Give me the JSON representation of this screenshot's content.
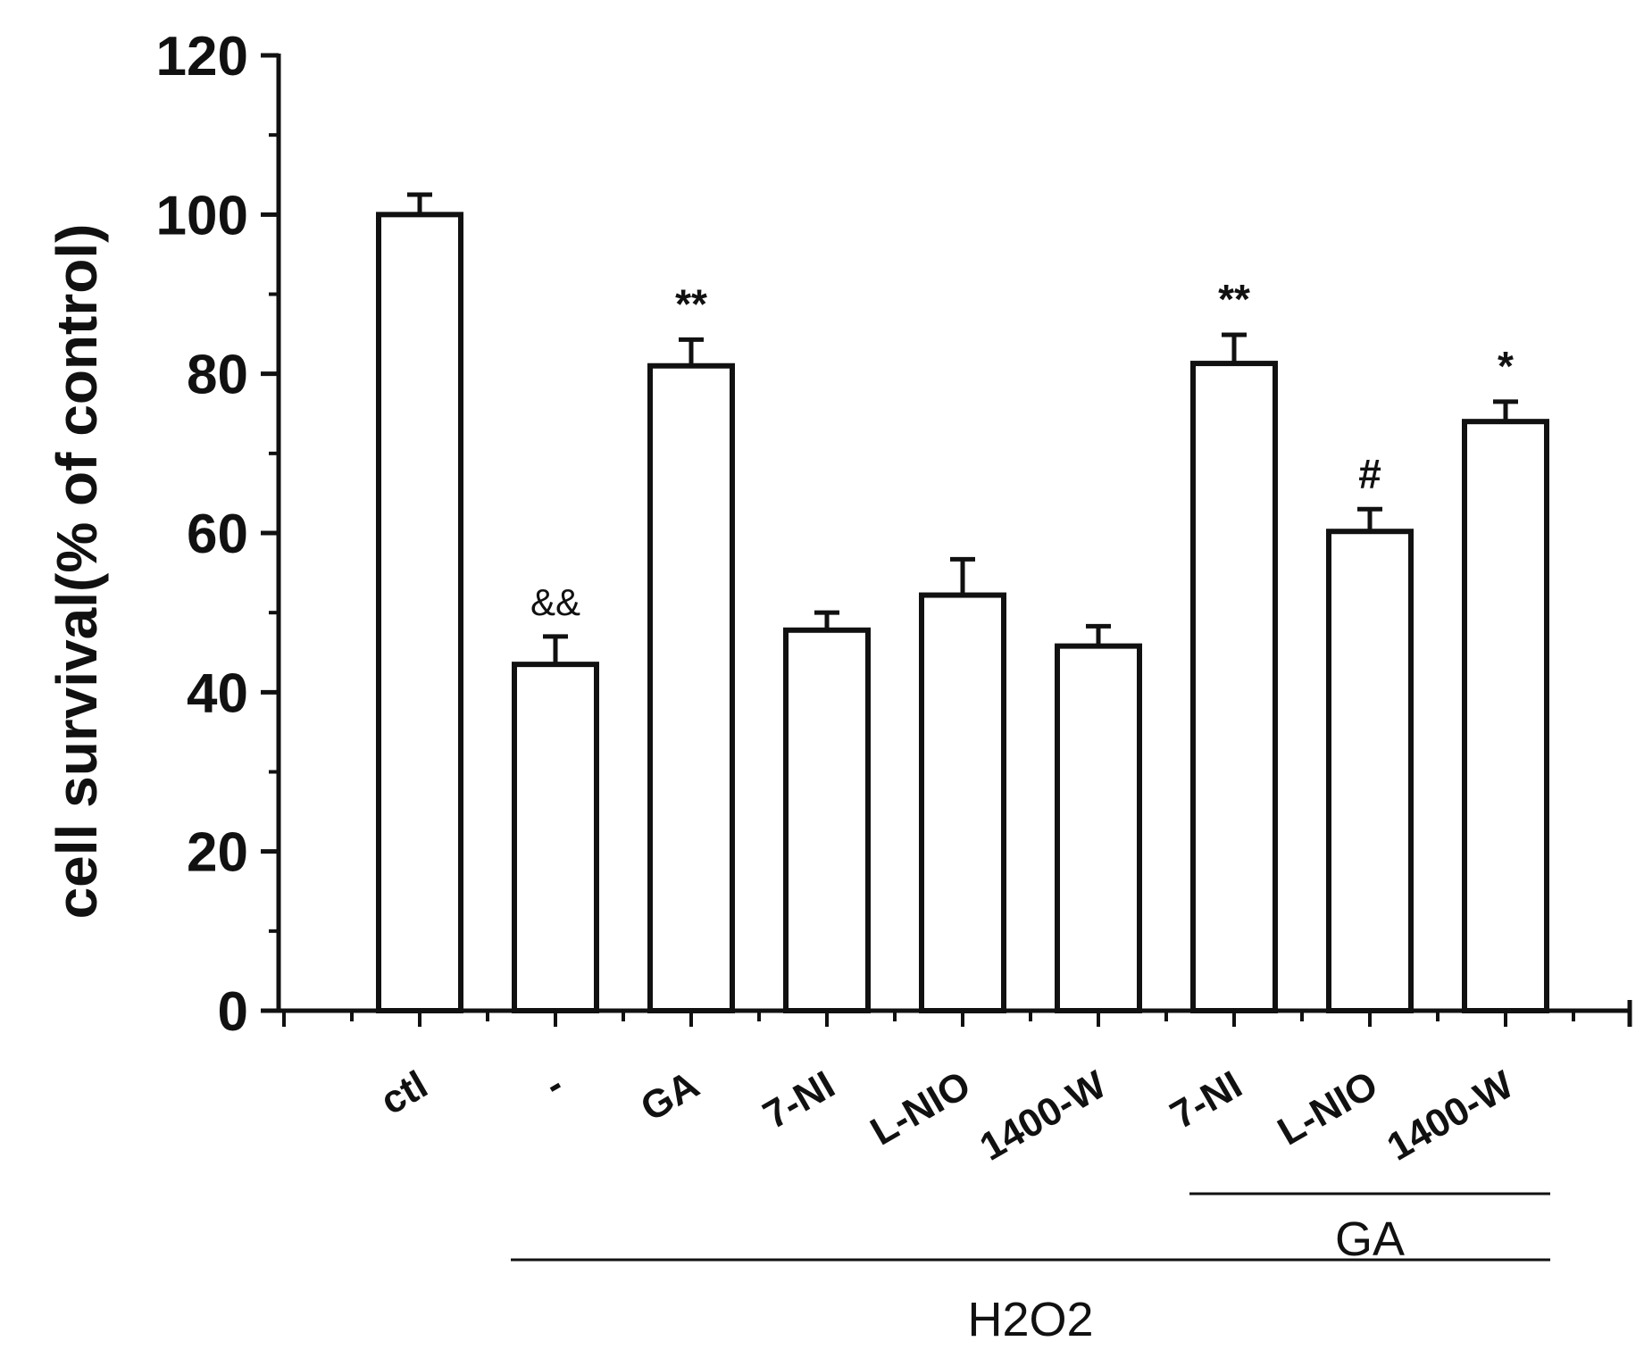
{
  "chart_data": {
    "type": "bar",
    "categories": [
      "ctl",
      "-",
      "GA",
      "7-NI",
      "L-NIO",
      "1400-W",
      "7-NI",
      "L-NIO",
      "1400-W"
    ],
    "values": [
      100,
      43.5,
      81,
      47.8,
      52.2,
      45.8,
      81.3,
      60.2,
      74
    ],
    "errors": [
      2.5,
      3.5,
      3.3,
      2.2,
      4.5,
      2.5,
      3.6,
      2.8,
      2.5
    ],
    "annotations": [
      "",
      "&&",
      "**",
      "",
      "",
      "",
      "**",
      "#",
      "*"
    ],
    "ylabel": "cell survival(% of control)",
    "xlabel": "",
    "ylim": [
      0,
      120
    ],
    "yticks": [
      0,
      20,
      40,
      60,
      80,
      100,
      120
    ],
    "grid": false,
    "bar_fill": "#ffffff",
    "bar_stroke": "#111111",
    "groups": [
      {
        "label": "GA",
        "from_index": 6,
        "to_index": 8
      },
      {
        "label": "H2O2",
        "from_index": 1,
        "to_index": 8
      }
    ]
  }
}
